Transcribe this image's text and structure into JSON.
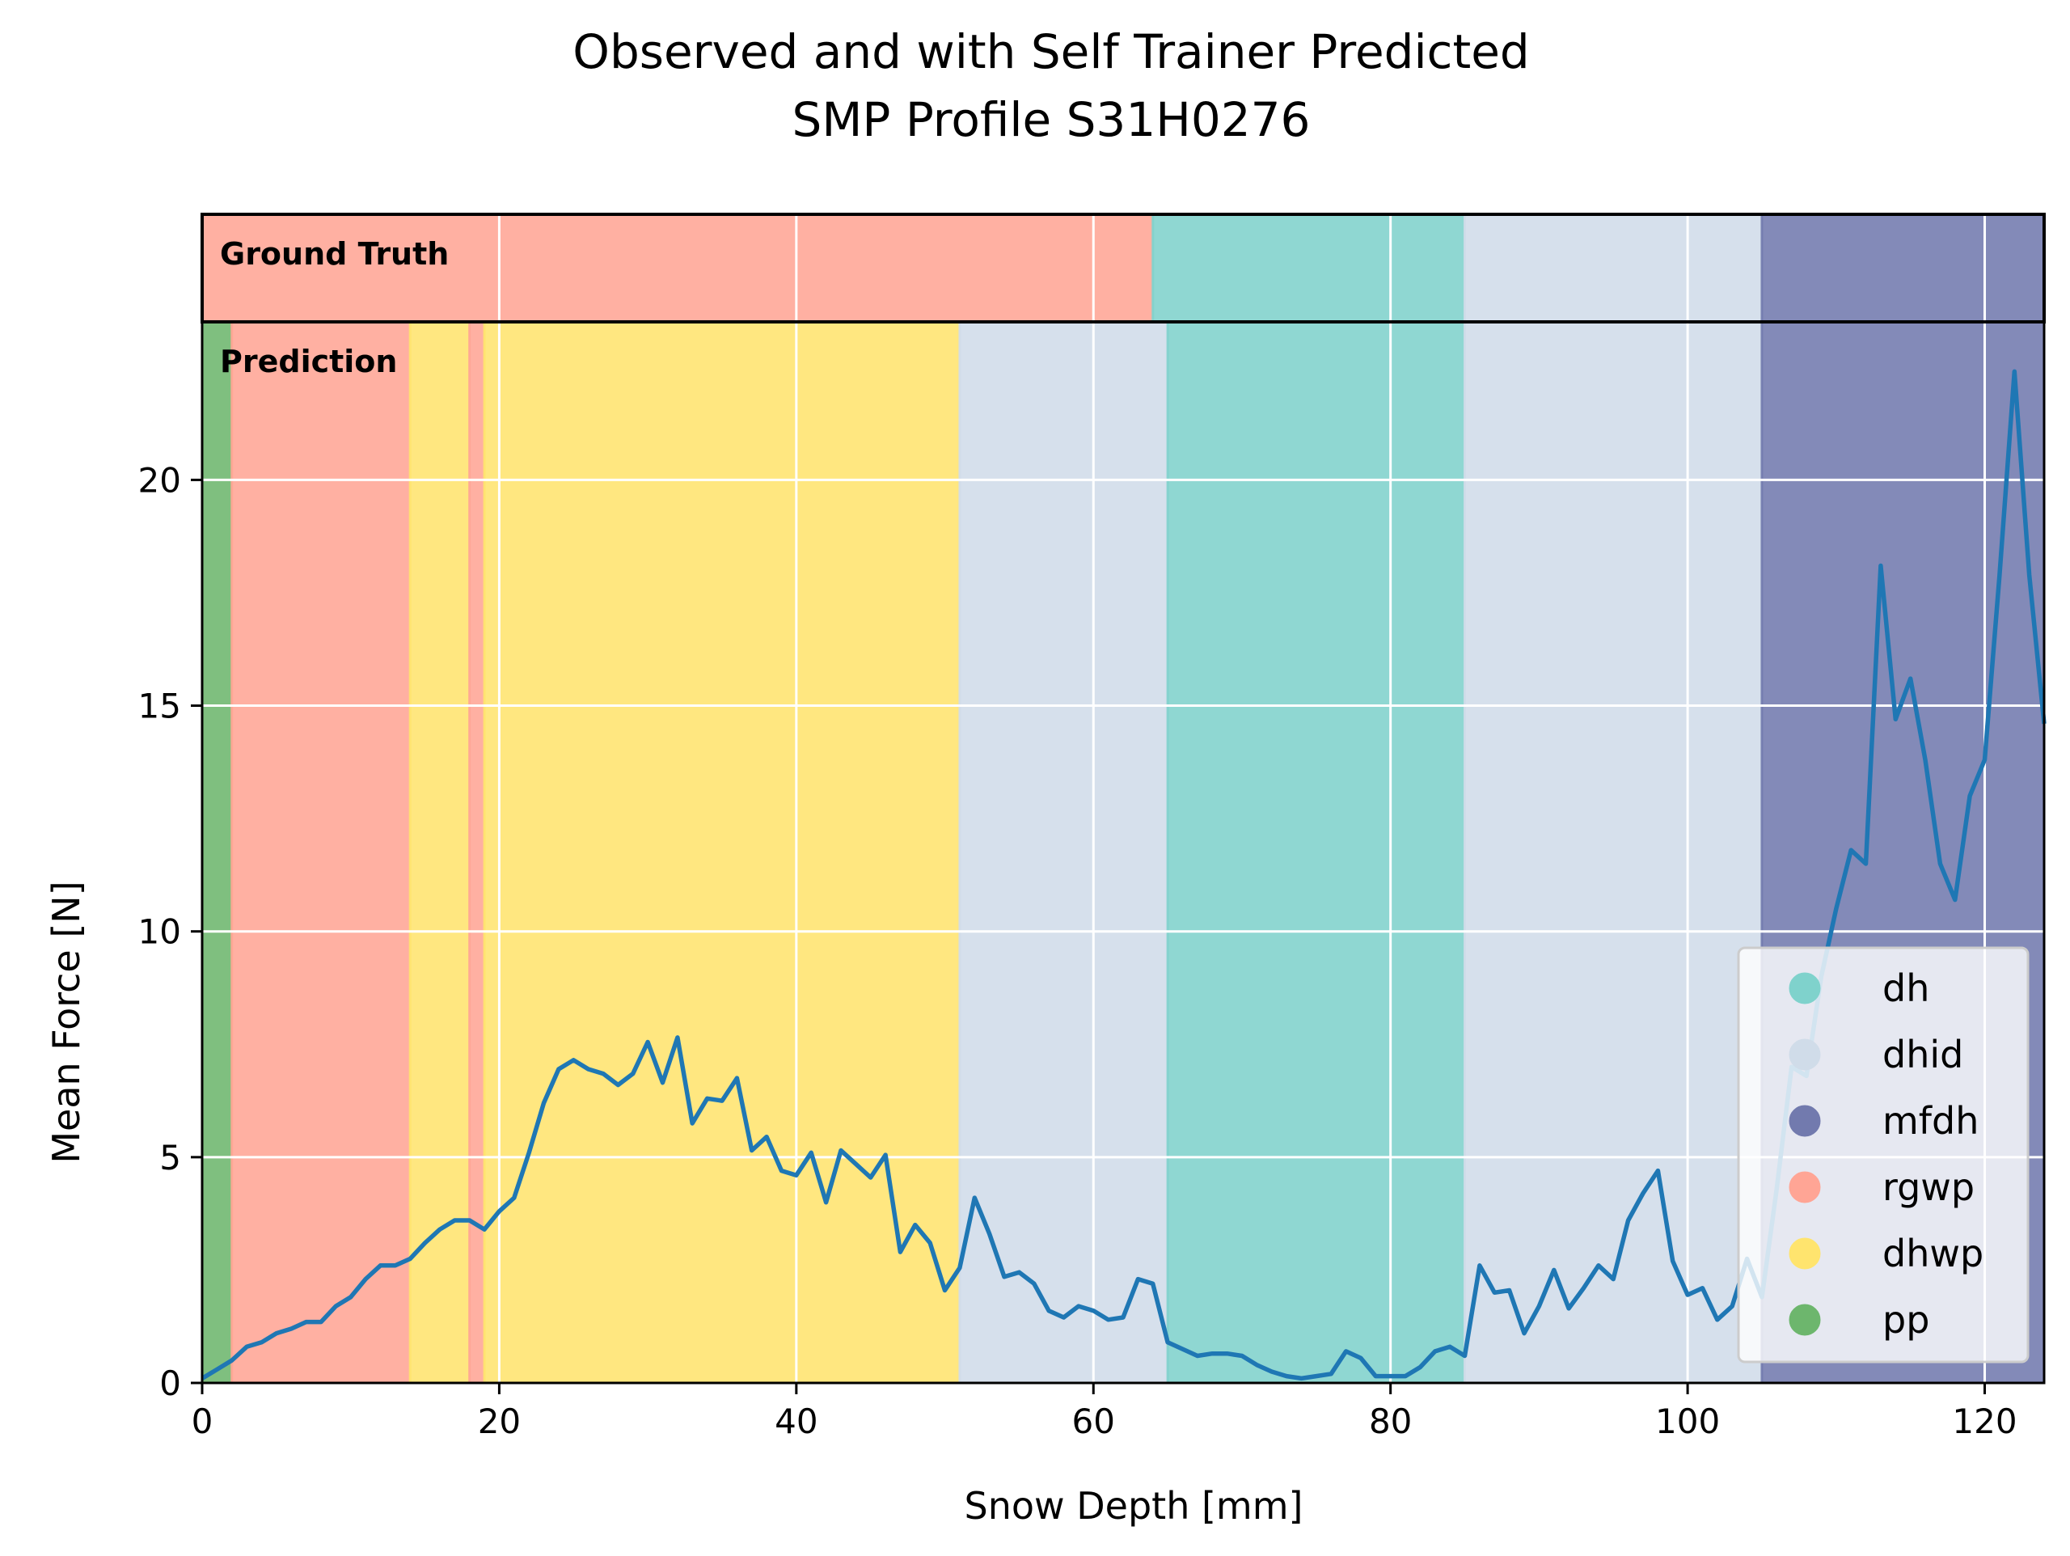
{
  "chart_data": {
    "type": "line",
    "title": [
      "Observed and with Self Trainer Predicted",
      "SMP Profile S31H0276"
    ],
    "xlabel": "Snow Depth [mm]",
    "ylabel": "Mean Force [N]",
    "xlim": [
      0,
      124
    ],
    "ylim": [
      0,
      23.5
    ],
    "xticks": [
      0,
      20,
      40,
      60,
      80,
      100,
      120
    ],
    "yticks": [
      0,
      5,
      10,
      15,
      20
    ],
    "grid": true,
    "legend_position": "lower-right",
    "panel_labels": {
      "ground_truth": "Ground Truth",
      "prediction": "Prediction"
    },
    "classes": [
      {
        "name": "dh",
        "color": "#7fd2cc"
      },
      {
        "name": "dhid",
        "color": "#d0dce9"
      },
      {
        "name": "mfdh",
        "color": "#727aae"
      },
      {
        "name": "rgwp",
        "color": "#ffa595"
      },
      {
        "name": "dhwp",
        "color": "#ffe46e"
      },
      {
        "name": "pp",
        "color": "#6db66d"
      }
    ],
    "ground_truth_segments": [
      {
        "label": "rgwp",
        "start": 0,
        "end": 64
      },
      {
        "label": "dh",
        "start": 64,
        "end": 85
      },
      {
        "label": "dhid",
        "start": 85,
        "end": 105
      },
      {
        "label": "mfdh",
        "start": 105,
        "end": 124
      }
    ],
    "prediction_segments": [
      {
        "label": "pp",
        "start": 0,
        "end": 2
      },
      {
        "label": "rgwp",
        "start": 2,
        "end": 14
      },
      {
        "label": "dhwp",
        "start": 14,
        "end": 18
      },
      {
        "label": "rgwp",
        "start": 18,
        "end": 19
      },
      {
        "label": "dhwp",
        "start": 19,
        "end": 51
      },
      {
        "label": "dhid",
        "start": 51,
        "end": 65
      },
      {
        "label": "dh",
        "start": 65,
        "end": 85
      },
      {
        "label": "dhid",
        "start": 85,
        "end": 105
      },
      {
        "label": "mfdh",
        "start": 105,
        "end": 124
      }
    ],
    "series": [
      {
        "color": "#1f77b4",
        "x": [
          0,
          1,
          2,
          3,
          4,
          5,
          6,
          7,
          8,
          9,
          10,
          11,
          12,
          13,
          14,
          15,
          16,
          17,
          18,
          19,
          20,
          21,
          22,
          23,
          24,
          25,
          26,
          27,
          28,
          29,
          30,
          31,
          32,
          33,
          34,
          35,
          36,
          37,
          38,
          39,
          40,
          41,
          42,
          43,
          44,
          45,
          46,
          47,
          48,
          49,
          50,
          51,
          52,
          53,
          54,
          55,
          56,
          57,
          58,
          59,
          60,
          61,
          62,
          63,
          64,
          65,
          66,
          67,
          68,
          69,
          70,
          71,
          72,
          73,
          74,
          75,
          76,
          77,
          78,
          79,
          80,
          81,
          82,
          83,
          84,
          85,
          86,
          87,
          88,
          89,
          90,
          91,
          92,
          93,
          94,
          95,
          96,
          97,
          98,
          99,
          100,
          101,
          102,
          103,
          104,
          105,
          106,
          107,
          108,
          109,
          110,
          111,
          112,
          113,
          114,
          115,
          116,
          117,
          118,
          119,
          120,
          121,
          122,
          123,
          124
        ],
        "y": [
          0.1,
          0.3,
          0.5,
          0.8,
          0.9,
          1.1,
          1.2,
          1.35,
          1.35,
          1.7,
          1.9,
          2.3,
          2.6,
          2.6,
          2.75,
          3.1,
          3.4,
          3.6,
          3.6,
          3.4,
          3.8,
          4.1,
          5.1,
          6.2,
          6.95,
          7.15,
          6.95,
          6.85,
          6.6,
          6.85,
          7.55,
          6.65,
          7.65,
          5.75,
          6.3,
          6.25,
          6.75,
          5.15,
          5.45,
          4.7,
          4.6,
          5.1,
          4.0,
          5.15,
          4.85,
          4.55,
          5.05,
          2.9,
          3.5,
          3.1,
          2.05,
          2.55,
          4.1,
          3.3,
          2.35,
          2.45,
          2.2,
          1.6,
          1.45,
          1.7,
          1.6,
          1.4,
          1.45,
          2.3,
          2.2,
          0.9,
          0.75,
          0.6,
          0.65,
          0.65,
          0.6,
          0.4,
          0.25,
          0.15,
          0.1,
          0.15,
          0.2,
          0.7,
          0.55,
          0.15,
          0.15,
          0.15,
          0.35,
          0.7,
          0.8,
          0.6,
          2.6,
          2.0,
          2.05,
          1.1,
          1.7,
          2.5,
          1.65,
          2.1,
          2.6,
          2.3,
          3.6,
          4.2,
          4.7,
          2.7,
          1.95,
          2.1,
          1.4,
          1.7,
          2.75,
          1.9,
          4.3,
          7.0,
          6.8,
          9.0,
          10.5,
          11.8,
          11.5,
          18.1,
          14.7,
          15.6,
          13.8,
          11.5,
          10.7,
          13.0,
          13.8,
          17.9,
          22.4,
          17.9,
          14.6
        ]
      }
    ]
  }
}
